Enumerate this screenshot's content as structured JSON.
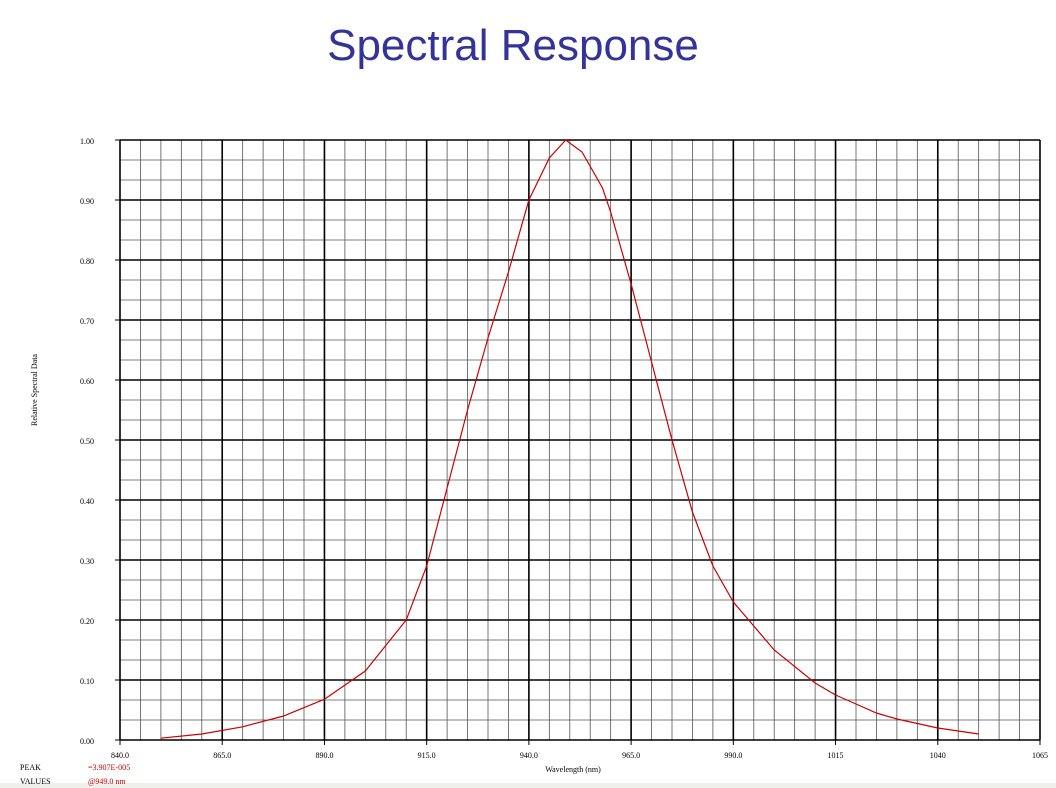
{
  "chart_data": {
    "type": "line",
    "title": "Spectral Response",
    "x_label": "Wavelength (nm)",
    "y_label": "Relative Spectral Data",
    "footer": {
      "peak_label": "PEAK",
      "peak_value": "=3.907E-005",
      "values_label": "VALUES",
      "values_value": "@949.0 nm"
    },
    "x": [
      850,
      860,
      870,
      880,
      890,
      900,
      910,
      915,
      920,
      925,
      930,
      935,
      940,
      945,
      949,
      953,
      958,
      960,
      965,
      970,
      975,
      980,
      985,
      990,
      1000,
      1010,
      1015,
      1020,
      1025,
      1030,
      1040,
      1050
    ],
    "series": [
      {
        "name": "Relative Spectral Data",
        "color": "#cc0000",
        "values": [
          0.003,
          0.01,
          0.022,
          0.04,
          0.068,
          0.115,
          0.2,
          0.29,
          0.42,
          0.55,
          0.67,
          0.78,
          0.9,
          0.97,
          1.0,
          0.98,
          0.92,
          0.88,
          0.76,
          0.63,
          0.5,
          0.38,
          0.29,
          0.23,
          0.15,
          0.095,
          0.075,
          0.06,
          0.045,
          0.035,
          0.02,
          0.01
        ]
      }
    ],
    "xlim": [
      840,
      1065
    ],
    "ylim": [
      0,
      1
    ],
    "xticks": [
      {
        "value": 840,
        "label": "840.0"
      },
      {
        "value": 865,
        "label": "865.0"
      },
      {
        "value": 890,
        "label": "890.0"
      },
      {
        "value": 915,
        "label": "915.0"
      },
      {
        "value": 940,
        "label": "940.0"
      },
      {
        "value": 965,
        "label": "965.0"
      },
      {
        "value": 990,
        "label": "990.0"
      },
      1015,
      1040,
      1065
    ],
    "yticks": [
      {
        "value": 0,
        "label": "0.00"
      },
      {
        "value": 0.1,
        "label": "0.10"
      },
      {
        "value": 0.2,
        "label": "0.20"
      },
      {
        "value": 0.3,
        "label": "0.30"
      },
      {
        "value": 0.4,
        "label": "0.40"
      },
      {
        "value": 0.5,
        "label": "0.50"
      },
      {
        "value": 0.6,
        "label": "0.60"
      },
      {
        "value": 0.7,
        "label": "0.70"
      },
      {
        "value": 0.8,
        "label": "0.80"
      },
      {
        "value": 0.9,
        "label": "0.90"
      },
      {
        "value": 1,
        "label": "1.00"
      }
    ],
    "grid": true,
    "minor_grid": {
      "x_divisions": 5,
      "y_divisions": 3
    }
  }
}
